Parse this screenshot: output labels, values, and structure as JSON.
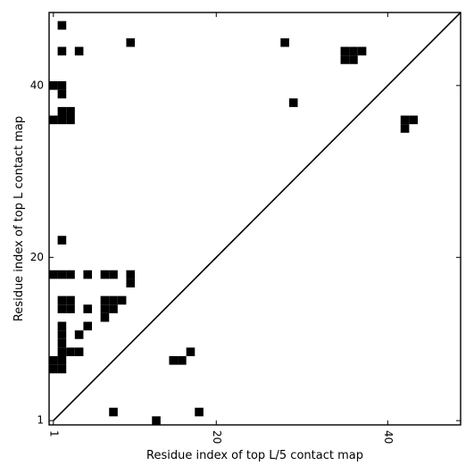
{
  "chart_data": {
    "type": "heatmap",
    "title": "",
    "xlabel": "Residue index of top L/5 contact map",
    "ylabel": "Residue index of top L contact map",
    "xlim": [
      0.5,
      48.5
    ],
    "ylim": [
      0.5,
      48.5
    ],
    "xticks": [
      1,
      20,
      40
    ],
    "yticks": [
      1,
      20,
      40
    ],
    "tick_label_rotation_x": -90,
    "diagonal": true,
    "cell_color": "#000000",
    "background": "#ffffff",
    "cells": [
      [
        13,
        1
      ],
      [
        8,
        2
      ],
      [
        18,
        2
      ],
      [
        1,
        7
      ],
      [
        2,
        7
      ],
      [
        1,
        8
      ],
      [
        2,
        8
      ],
      [
        2,
        9
      ],
      [
        3,
        9
      ],
      [
        4,
        9
      ],
      [
        15,
        8
      ],
      [
        16,
        8
      ],
      [
        17,
        9
      ],
      [
        2,
        10
      ],
      [
        2,
        11
      ],
      [
        4,
        11
      ],
      [
        2,
        12
      ],
      [
        5,
        12
      ],
      [
        7,
        13
      ],
      [
        7,
        14
      ],
      [
        8,
        14
      ],
      [
        7,
        15
      ],
      [
        8,
        15
      ],
      [
        9,
        15
      ],
      [
        2,
        14
      ],
      [
        3,
        14
      ],
      [
        2,
        15
      ],
      [
        3,
        15
      ],
      [
        5,
        14
      ],
      [
        1,
        18
      ],
      [
        2,
        18
      ],
      [
        3,
        18
      ],
      [
        5,
        18
      ],
      [
        7,
        18
      ],
      [
        8,
        18
      ],
      [
        10,
        17
      ],
      [
        10,
        18
      ],
      [
        2,
        22
      ],
      [
        1,
        36
      ],
      [
        2,
        36
      ],
      [
        3,
        36
      ],
      [
        2,
        37
      ],
      [
        3,
        37
      ],
      [
        1,
        40
      ],
      [
        2,
        40
      ],
      [
        2,
        39
      ],
      [
        2,
        44
      ],
      [
        4,
        44
      ],
      [
        2,
        47
      ],
      [
        10,
        45
      ],
      [
        28,
        45
      ],
      [
        29,
        38
      ],
      [
        35,
        43
      ],
      [
        36,
        43
      ],
      [
        37,
        44
      ],
      [
        35,
        44
      ],
      [
        36,
        44
      ],
      [
        42,
        36
      ],
      [
        42,
        35
      ],
      [
        43,
        36
      ]
    ]
  }
}
